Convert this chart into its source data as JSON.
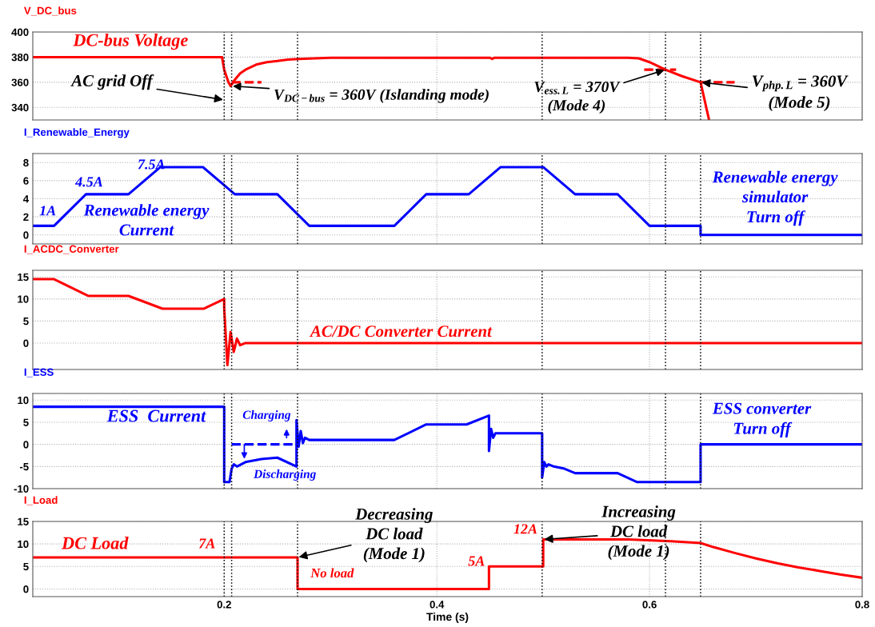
{
  "chart_data": [
    {
      "type": "line",
      "title": "V_DC_bus",
      "xlim": [
        0.02,
        0.8
      ],
      "xticks": [
        0.2,
        0.4,
        0.6,
        0.8
      ],
      "ylim": [
        330,
        400
      ],
      "yticks": [
        340,
        360,
        380,
        400
      ],
      "tick_labels": "y",
      "grid": true,
      "series": [
        {
          "color": "#ff0000",
          "x": [
            0.02,
            0.198,
            0.2,
            0.204,
            0.206,
            0.21,
            0.215,
            0.22,
            0.23,
            0.24,
            0.25,
            0.26,
            0.27,
            0.3,
            0.4,
            0.45,
            0.452,
            0.454,
            0.5,
            0.58,
            0.59,
            0.6,
            0.615,
            0.63,
            0.648,
            0.656
          ],
          "values": [
            380,
            380,
            370,
            360,
            357,
            362,
            367,
            370,
            374,
            376,
            377,
            378,
            378.5,
            379.5,
            379.5,
            379.5,
            378.5,
            379.5,
            379.5,
            379.5,
            379,
            376,
            370,
            365,
            360,
            330
          ]
        },
        {
          "color": "#ff0000",
          "line_style": "dashed",
          "x": [
            0.207,
            0.235
          ],
          "values": [
            360,
            360
          ]
        },
        {
          "color": "#ff0000",
          "line_style": "dashed",
          "x": [
            0.595,
            0.625
          ],
          "values": [
            370,
            370
          ]
        },
        {
          "color": "#ff0000",
          "line_style": "dashed",
          "x": [
            0.648,
            0.68
          ],
          "values": [
            360,
            360
          ]
        }
      ],
      "ref_lines": [
        {
          "axis": "x",
          "value": 0.2,
          "color": "#000000",
          "line_style": "dotted"
        },
        {
          "axis": "x",
          "value": 0.207,
          "color": "#000000",
          "line_style": "dotted"
        },
        {
          "axis": "x",
          "value": 0.269,
          "color": "#000000",
          "line_style": "dotted"
        },
        {
          "axis": "x",
          "value": 0.499,
          "color": "#000000",
          "line_style": "dotted"
        },
        {
          "axis": "x",
          "value": 0.615,
          "color": "#000000",
          "line_style": "dotted"
        },
        {
          "axis": "x",
          "value": 0.648,
          "color": "#000000",
          "line_style": "dotted"
        }
      ],
      "annotations": [
        "DC-bus Voltage",
        {
          "text": "AC grid Off",
          "x": 0.2,
          "y": 346
        },
        {
          "text": "V$_{DC−bus}$ = 360V (Islanding mode)",
          "x": 0.207,
          "y": 357
        },
        {
          "text": "V$_{ess.L}$ = 370V\n(Mode 4)",
          "x": 0.615,
          "y": 370
        },
        {
          "text": "V$_{php.L}$ = 360V\n(Mode 5)",
          "x": 0.648,
          "y": 360
        }
      ]
    },
    {
      "type": "line",
      "title": "I_Renewable_Energy",
      "xlim": [
        0.02,
        0.8
      ],
      "xticks": [
        0.2,
        0.4,
        0.6,
        0.8
      ],
      "ylim": [
        -1,
        9
      ],
      "yticks": [
        0,
        2,
        4,
        6,
        8
      ],
      "tick_labels": "y",
      "grid": true,
      "series": [
        {
          "color": "#0000ff",
          "x": [
            0.02,
            0.04,
            0.07,
            0.11,
            0.14,
            0.18,
            0.21,
            0.25,
            0.28,
            0.36,
            0.39,
            0.43,
            0.46,
            0.5,
            0.53,
            0.57,
            0.6,
            0.648,
            0.648,
            0.8
          ],
          "values": [
            1,
            1,
            4.5,
            4.5,
            7.5,
            7.5,
            4.5,
            4.5,
            1,
            1,
            4.5,
            4.5,
            7.5,
            7.5,
            4.5,
            4.5,
            1,
            1,
            0,
            0
          ]
        }
      ],
      "ref_lines": [
        {
          "axis": "x",
          "value": 0.2,
          "color": "#000000",
          "line_style": "dotted"
        },
        {
          "axis": "x",
          "value": 0.207,
          "color": "#000000",
          "line_style": "dotted"
        },
        {
          "axis": "x",
          "value": 0.269,
          "color": "#000000",
          "line_style": "dotted"
        },
        {
          "axis": "x",
          "value": 0.499,
          "color": "#000000",
          "line_style": "dotted"
        },
        {
          "axis": "x",
          "value": 0.615,
          "color": "#000000",
          "line_style": "dotted"
        },
        {
          "axis": "x",
          "value": 0.648,
          "color": "#000000",
          "line_style": "dotted"
        }
      ],
      "annotations": [
        "1A",
        "4.5A",
        "7.5A",
        "Renewable energy\nCurrent",
        "Renewable energy\nsimulator\nTurn off"
      ]
    },
    {
      "type": "line",
      "title": "I_ACDC_Converter",
      "xlim": [
        0.02,
        0.8
      ],
      "xticks": [
        0.2,
        0.4,
        0.6,
        0.8
      ],
      "ylim": [
        -6,
        16.5
      ],
      "yticks": [
        0,
        5,
        10,
        15
      ],
      "tick_labels": "y",
      "grid": true,
      "series": [
        {
          "color": "#ff0000",
          "x": [
            0.02,
            0.04,
            0.072,
            0.11,
            0.142,
            0.181,
            0.2,
            0.2,
            0.203,
            0.206,
            0.209,
            0.212,
            0.215,
            0.22,
            0.8
          ],
          "values": [
            14.5,
            14.5,
            10.7,
            10.7,
            7.8,
            7.8,
            10,
            8,
            -5,
            2.5,
            -2,
            1,
            -0.5,
            0,
            0
          ]
        }
      ],
      "ref_lines": [
        {
          "axis": "x",
          "value": 0.2,
          "color": "#000000",
          "line_style": "dotted"
        },
        {
          "axis": "x",
          "value": 0.207,
          "color": "#000000",
          "line_style": "dotted"
        },
        {
          "axis": "x",
          "value": 0.269,
          "color": "#000000",
          "line_style": "dotted"
        },
        {
          "axis": "x",
          "value": 0.499,
          "color": "#000000",
          "line_style": "dotted"
        },
        {
          "axis": "x",
          "value": 0.615,
          "color": "#000000",
          "line_style": "dotted"
        },
        {
          "axis": "x",
          "value": 0.648,
          "color": "#000000",
          "line_style": "dotted"
        }
      ],
      "annotations": [
        "AC/DC Converter Current"
      ]
    },
    {
      "type": "line",
      "title": "I_ESS",
      "xlim": [
        0.02,
        0.8
      ],
      "xticks": [
        0.2,
        0.4,
        0.6,
        0.8
      ],
      "ylim": [
        -10,
        11.5
      ],
      "yticks": [
        -10,
        -5,
        0,
        5,
        10
      ],
      "tick_labels": "y",
      "grid": true,
      "series": [
        {
          "color": "#0000ff",
          "x": [
            0.02,
            0.2,
            0.2,
            0.205,
            0.207,
            0.209,
            0.212,
            0.22,
            0.235,
            0.25,
            0.268,
            0.268,
            0.27,
            0.272,
            0.274,
            0.276,
            0.28,
            0.36,
            0.39,
            0.428,
            0.449,
            0.449,
            0.451,
            0.453,
            0.455,
            0.46,
            0.499,
            0.499,
            0.501,
            0.503,
            0.505,
            0.51,
            0.52,
            0.53,
            0.57,
            0.588,
            0.648,
            0.648,
            0.8
          ],
          "values": [
            8.5,
            8.5,
            -8.5,
            -8.5,
            -5.5,
            -4.5,
            -5,
            -4,
            -3.3,
            -3,
            -5,
            5.5,
            -0.5,
            3,
            0.3,
            1.5,
            1,
            1,
            4.5,
            4.5,
            6.5,
            -1.5,
            3.5,
            1.5,
            2.5,
            2.5,
            2.5,
            -7.5,
            -4,
            -5,
            -4.5,
            -5,
            -5.5,
            -6.5,
            -6.5,
            -8.5,
            -8.5,
            0,
            0
          ]
        },
        {
          "color": "#0000ff",
          "line_style": "dashed",
          "x": [
            0.207,
            0.268
          ],
          "values": [
            0,
            0
          ]
        }
      ],
      "ref_lines": [
        {
          "axis": "x",
          "value": 0.2,
          "color": "#000000",
          "line_style": "dotted"
        },
        {
          "axis": "x",
          "value": 0.207,
          "color": "#000000",
          "line_style": "dotted"
        },
        {
          "axis": "x",
          "value": 0.269,
          "color": "#000000",
          "line_style": "dotted"
        },
        {
          "axis": "x",
          "value": 0.499,
          "color": "#000000",
          "line_style": "dotted"
        },
        {
          "axis": "x",
          "value": 0.615,
          "color": "#000000",
          "line_style": "dotted"
        },
        {
          "axis": "x",
          "value": 0.648,
          "color": "#000000",
          "line_style": "dotted"
        }
      ],
      "annotations": [
        "ESS  Current",
        "Charging",
        "Discharging",
        "ESS converter\nTurn off"
      ]
    },
    {
      "type": "line",
      "title": "I_Load",
      "xlabel": "Time (s)",
      "xlim": [
        0.02,
        0.8
      ],
      "xticks": [
        0.2,
        0.4,
        0.6,
        0.8
      ],
      "ylim": [
        -1.7,
        15
      ],
      "yticks": [
        0,
        5,
        10,
        15
      ],
      "grid": true,
      "series": [
        {
          "color": "#ff0000",
          "x": [
            0.02,
            0.269,
            0.269,
            0.449,
            0.449,
            0.5,
            0.5,
            0.58,
            0.62,
            0.648,
            0.66,
            0.68,
            0.7,
            0.72,
            0.74,
            0.76,
            0.78,
            0.8
          ],
          "values": [
            7,
            7,
            0,
            0,
            5,
            5,
            11,
            11,
            10.6,
            10.2,
            9.3,
            8,
            6.8,
            5.7,
            4.8,
            4,
            3.2,
            2.5
          ]
        }
      ],
      "ref_lines": [
        {
          "axis": "x",
          "value": 0.2,
          "color": "#000000",
          "line_style": "dotted"
        },
        {
          "axis": "x",
          "value": 0.207,
          "color": "#000000",
          "line_style": "dotted"
        },
        {
          "axis": "x",
          "value": 0.269,
          "color": "#000000",
          "line_style": "dotted"
        },
        {
          "axis": "x",
          "value": 0.499,
          "color": "#000000",
          "line_style": "dotted"
        },
        {
          "axis": "x",
          "value": 0.615,
          "color": "#000000",
          "line_style": "dotted"
        },
        {
          "axis": "x",
          "value": 0.648,
          "color": "#000000",
          "line_style": "dotted"
        }
      ],
      "annotations": [
        "DC Load",
        "7A",
        "No load",
        "5A",
        "12A",
        {
          "text": "Decreasing\nDC load\n(Mode 1)",
          "x": 0.269,
          "y": 7
        },
        {
          "text": "Increasing\nDC load\n(Mode 1)",
          "x": 0.5,
          "y": 11
        }
      ]
    }
  ]
}
